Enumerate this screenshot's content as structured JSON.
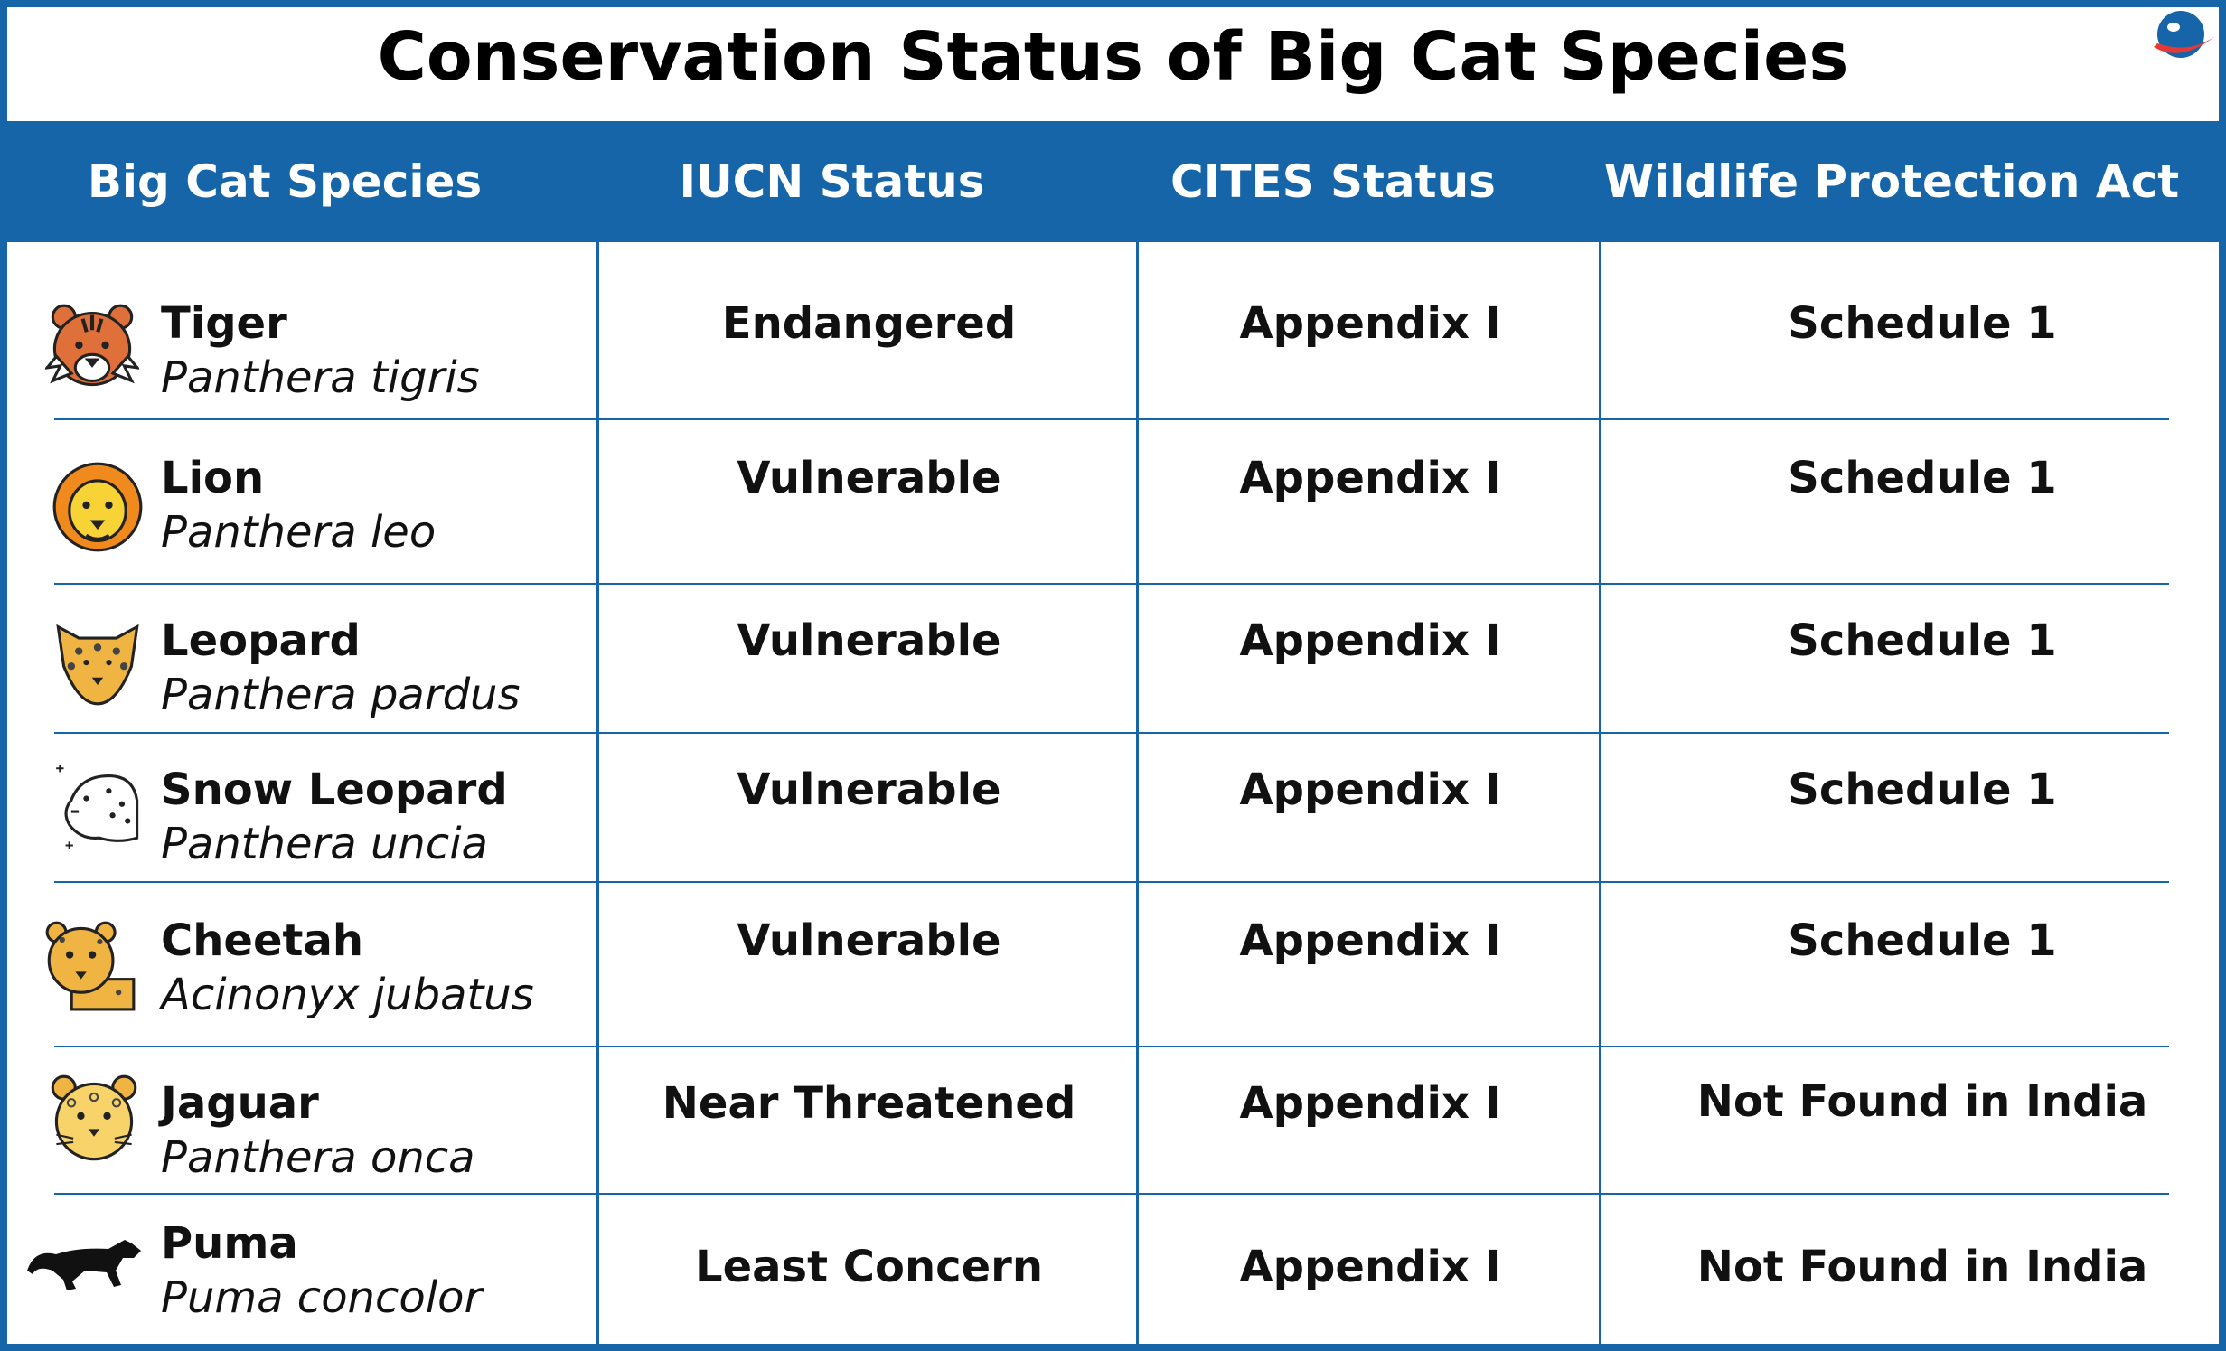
{
  "title": "Conservation Status of Big Cat Species",
  "colors": {
    "brand_blue": "#1565a8",
    "logo_red": "#e53935"
  },
  "table": {
    "headers": [
      "Big Cat Species",
      "IUCN Status",
      "CITES Status",
      "Wildlife Protection Act"
    ],
    "rows": [
      {
        "icon": "tiger-face-icon",
        "name": "Tiger",
        "scientific": "Panthera tigris",
        "iucn": "Endangered",
        "cites": "Appendix I",
        "wpa": "Schedule 1"
      },
      {
        "icon": "lion-face-icon",
        "name": "Lion",
        "scientific": "Panthera leo",
        "iucn": "Vulnerable",
        "cites": "Appendix I",
        "wpa": "Schedule 1"
      },
      {
        "icon": "leopard-face-icon",
        "name": "Leopard",
        "scientific": "Panthera pardus",
        "iucn": "Vulnerable",
        "cites": "Appendix I",
        "wpa": "Schedule 1"
      },
      {
        "icon": "snow-leopard-face-icon",
        "name": "Snow Leopard",
        "scientific": "Panthera uncia",
        "iucn": "Vulnerable",
        "cites": "Appendix I",
        "wpa": "Schedule 1"
      },
      {
        "icon": "cheetah-face-icon",
        "name": "Cheetah",
        "scientific": "Acinonyx jubatus",
        "iucn": "Vulnerable",
        "cites": "Appendix I",
        "wpa": "Schedule 1"
      },
      {
        "icon": "jaguar-face-icon",
        "name": "Jaguar",
        "scientific": "Panthera onca",
        "iucn": "Near Threatened",
        "cites": "Appendix I",
        "wpa": "Not Found in India"
      },
      {
        "icon": "puma-silhouette-icon",
        "name": "Puma",
        "scientific": "Puma concolor",
        "iucn": "Least Concern",
        "cites": "Appendix I",
        "wpa": "Not Found in India"
      }
    ]
  }
}
